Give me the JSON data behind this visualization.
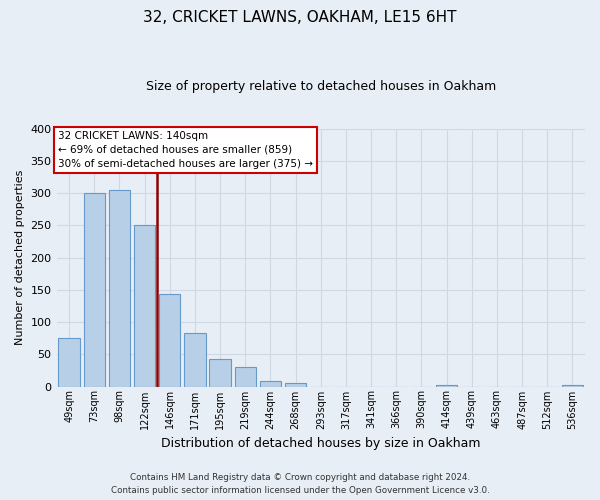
{
  "title": "32, CRICKET LAWNS, OAKHAM, LE15 6HT",
  "subtitle": "Size of property relative to detached houses in Oakham",
  "xlabel": "Distribution of detached houses by size in Oakham",
  "ylabel": "Number of detached properties",
  "bar_labels": [
    "49sqm",
    "73sqm",
    "98sqm",
    "122sqm",
    "146sqm",
    "171sqm",
    "195sqm",
    "219sqm",
    "244sqm",
    "268sqm",
    "293sqm",
    "317sqm",
    "341sqm",
    "366sqm",
    "390sqm",
    "414sqm",
    "439sqm",
    "463sqm",
    "487sqm",
    "512sqm",
    "536sqm"
  ],
  "bar_values": [
    75,
    300,
    305,
    250,
    143,
    83,
    43,
    31,
    8,
    6,
    0,
    0,
    0,
    0,
    0,
    2,
    0,
    0,
    0,
    0,
    3
  ],
  "bar_color": "#b8cfe8",
  "bar_edge_color": "#6699cc",
  "marker_index": 3.5,
  "marker_color": "#8b0000",
  "ylim": [
    0,
    400
  ],
  "yticks": [
    0,
    50,
    100,
    150,
    200,
    250,
    300,
    350,
    400
  ],
  "annotation_title": "32 CRICKET LAWNS: 140sqm",
  "annotation_line1": "← 69% of detached houses are smaller (859)",
  "annotation_line2": "30% of semi-detached houses are larger (375) →",
  "annotation_box_color": "#ffffff",
  "annotation_box_edge": "#cc0000",
  "footer_line1": "Contains HM Land Registry data © Crown copyright and database right 2024.",
  "footer_line2": "Contains public sector information licensed under the Open Government Licence v3.0.",
  "background_color": "#e8eef5",
  "grid_color": "#d0d8e4",
  "plot_bg_color": "#e8eef5"
}
